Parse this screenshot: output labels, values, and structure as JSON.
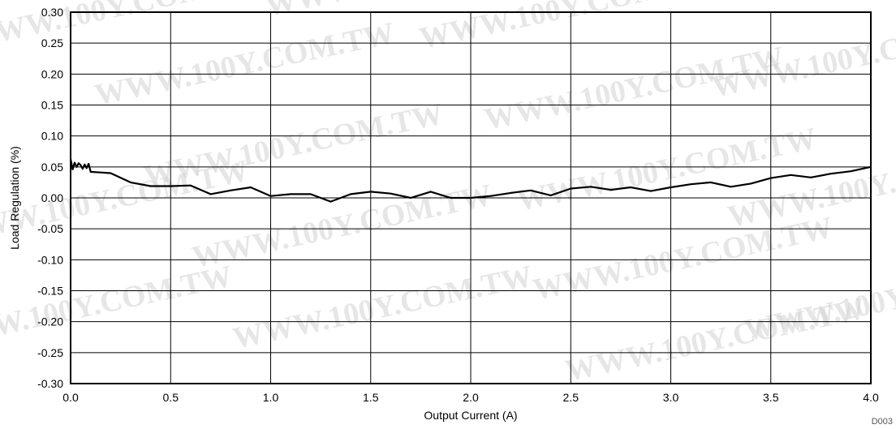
{
  "watermark": "WWW.100Y.COM.TW",
  "figure_code": "D003",
  "chart_data": {
    "type": "line",
    "title": "",
    "xlabel": "Output Current (A)",
    "ylabel": "Load Regulation (%)",
    "xlim": [
      0,
      4
    ],
    "ylim": [
      -0.3,
      0.3
    ],
    "x_ticks": [
      "0.0",
      "0.5",
      "1.0",
      "1.5",
      "2.0",
      "2.5",
      "3.0",
      "3.5",
      "4.0"
    ],
    "y_ticks": [
      "-0.30",
      "-0.25",
      "-0.20",
      "-0.15",
      "-0.10",
      "-0.05",
      "0.00",
      "0.05",
      "0.10",
      "0.15",
      "0.20",
      "0.25",
      "0.30"
    ],
    "grid": true,
    "series": [
      {
        "x": [
          0.0,
          0.01,
          0.02,
          0.03,
          0.04,
          0.05,
          0.06,
          0.07,
          0.08,
          0.09,
          0.1,
          0.2,
          0.3,
          0.4,
          0.5,
          0.6,
          0.7,
          0.8,
          0.9,
          1.0,
          1.1,
          1.2,
          1.3,
          1.4,
          1.5,
          1.6,
          1.7,
          1.8,
          1.9,
          2.0,
          2.1,
          2.2,
          2.3,
          2.4,
          2.5,
          2.6,
          2.7,
          2.8,
          2.9,
          3.0,
          3.1,
          3.2,
          3.3,
          3.4,
          3.5,
          3.6,
          3.7,
          3.8,
          3.9,
          4.0
        ],
        "y": [
          0.063,
          0.046,
          0.057,
          0.05,
          0.056,
          0.053,
          0.047,
          0.054,
          0.048,
          0.055,
          0.042,
          0.04,
          0.025,
          0.019,
          0.019,
          0.02,
          0.006,
          0.012,
          0.017,
          0.003,
          0.006,
          0.006,
          -0.006,
          0.006,
          0.01,
          0.007,
          0.0,
          0.01,
          0.0,
          0.0,
          0.003,
          0.008,
          0.012,
          0.004,
          0.015,
          0.018,
          0.013,
          0.017,
          0.011,
          0.017,
          0.022,
          0.025,
          0.018,
          0.023,
          0.032,
          0.037,
          0.033,
          0.039,
          0.043,
          0.05
        ]
      }
    ]
  }
}
